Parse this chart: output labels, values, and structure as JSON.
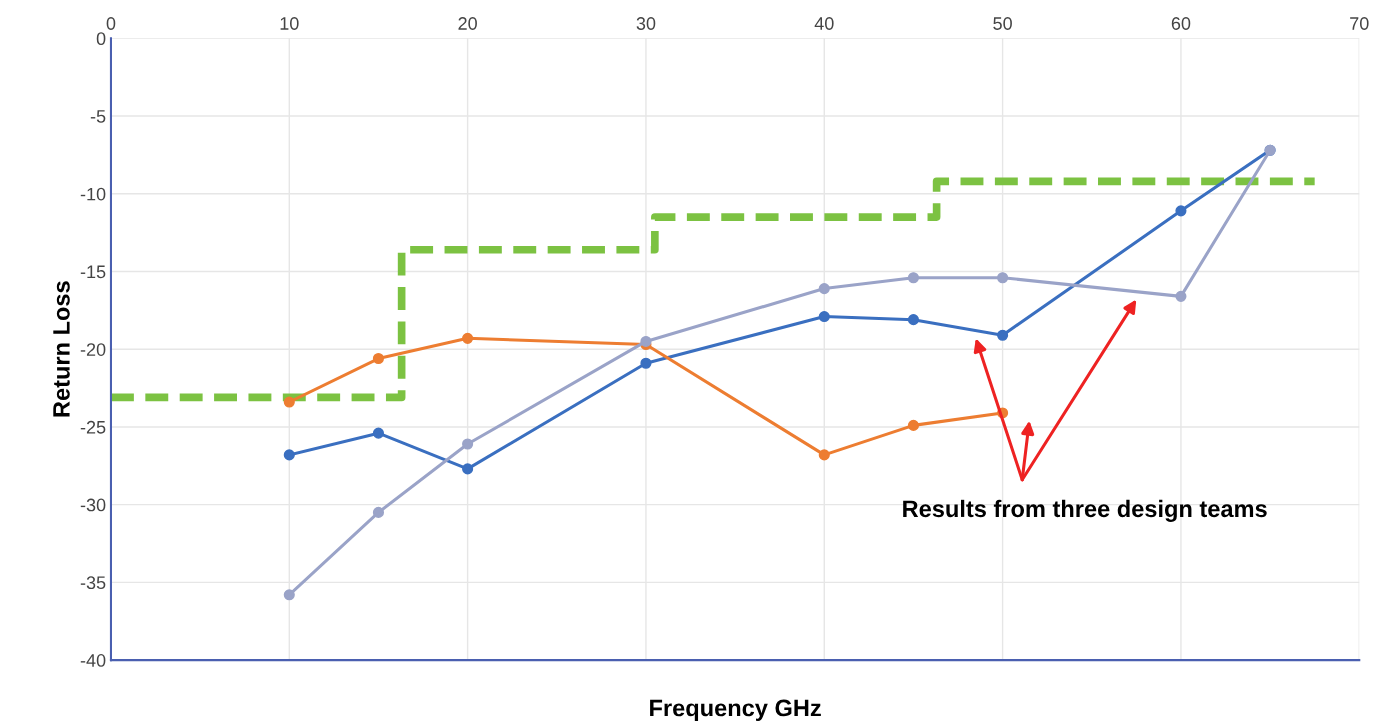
{
  "chart_data": {
    "type": "line",
    "xlabel": "Frequency GHz",
    "ylabel": "Return Loss",
    "xlim": [
      0,
      70
    ],
    "xticks": [
      0,
      10,
      20,
      30,
      40,
      50,
      60,
      70
    ],
    "ylim": [
      -40,
      0
    ],
    "yticks": [
      -40,
      -35,
      -30,
      -25,
      -20,
      -15,
      -10,
      -5,
      0
    ],
    "grid": true,
    "marker": "circle",
    "line_style": "solid",
    "series": [
      {
        "type": "step",
        "color": "#7cc242",
        "line_style": "dashed",
        "marker": "none",
        "x": [
          0,
          16.3,
          30.5,
          46.3,
          67.5
        ],
        "values": [
          -23.1,
          -13.6,
          -11.5,
          -9.2,
          -9.2
        ]
      },
      {
        "color": "#3a6fc0",
        "x": [
          10,
          15,
          20,
          30,
          40,
          45,
          50,
          60,
          65
        ],
        "values": [
          -26.8,
          -25.4,
          -27.7,
          -20.9,
          -17.9,
          -18.1,
          -19.1,
          -11.1,
          -7.2
        ]
      },
      {
        "color": "#ed7d31",
        "x": [
          10,
          15,
          20,
          30,
          40,
          45,
          50
        ],
        "values": [
          -23.4,
          -20.6,
          -19.3,
          -19.7,
          -26.8,
          -24.9,
          -24.1
        ]
      },
      {
        "color": "#9aa3c8",
        "x": [
          10,
          15,
          20,
          30,
          40,
          45,
          50,
          60,
          65
        ],
        "values": [
          -35.8,
          -30.5,
          -26.1,
          -19.5,
          -16.1,
          -15.4,
          -15.4,
          -16.6,
          -7.2
        ]
      }
    ],
    "annotations": [
      "Results from three design teams"
    ]
  }
}
